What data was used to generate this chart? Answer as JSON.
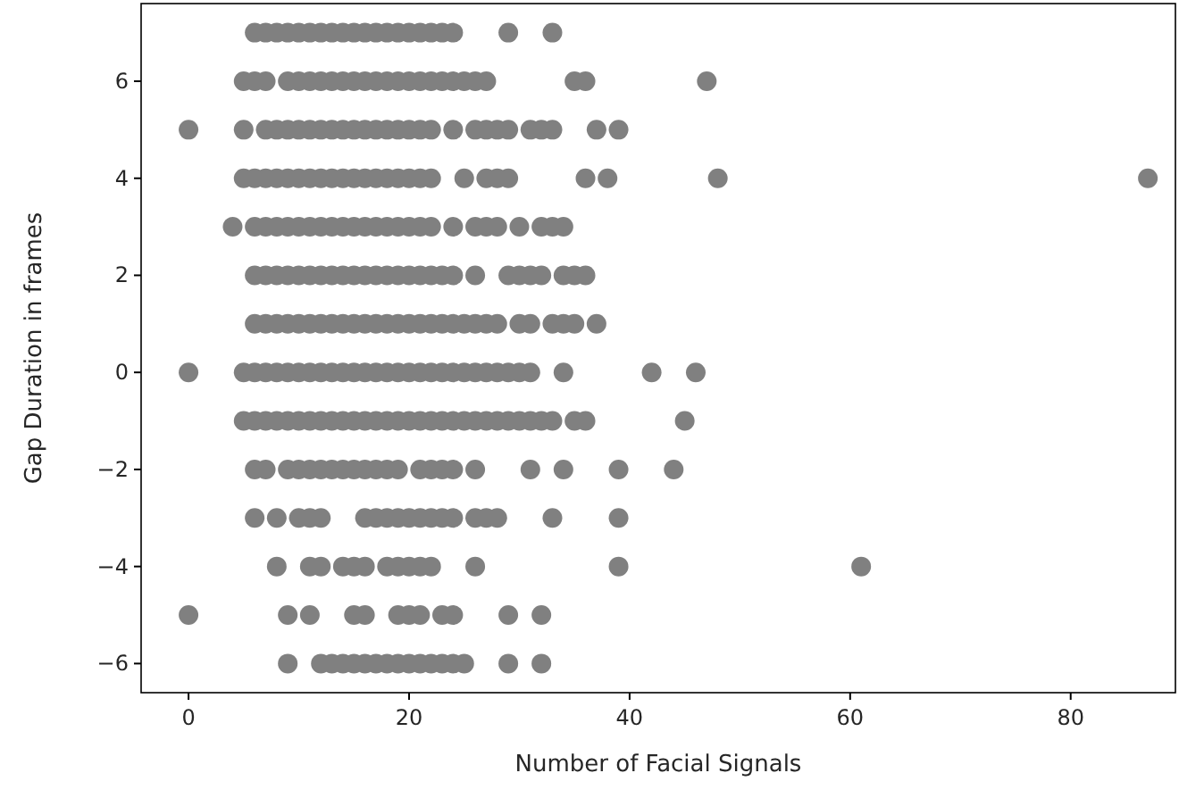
{
  "chart_data": {
    "type": "scatter",
    "xlabel": "Number of Facial Signals",
    "ylabel": "Gap Duration in frames",
    "xlim": [
      -4.3,
      89.5
    ],
    "ylim": [
      -6.6,
      7.6
    ],
    "xticks": [
      0,
      20,
      40,
      60,
      80
    ],
    "yticks": [
      -6,
      -4,
      -2,
      0,
      2,
      4,
      6
    ],
    "grid": false,
    "marker": "circle",
    "series": [
      {
        "color": "#808080",
        "x": [
          6,
          7,
          8,
          9,
          10,
          11,
          12,
          13,
          14,
          15,
          16,
          17,
          18,
          19,
          20,
          21,
          22,
          23,
          24,
          29,
          33,
          5,
          6,
          7,
          9,
          10,
          11,
          12,
          13,
          14,
          15,
          16,
          17,
          18,
          19,
          20,
          21,
          22,
          23,
          24,
          25,
          26,
          27,
          35,
          36,
          47,
          0,
          5,
          7,
          8,
          9,
          10,
          11,
          12,
          13,
          14,
          15,
          16,
          17,
          18,
          19,
          20,
          21,
          22,
          24,
          26,
          27,
          28,
          29,
          31,
          32,
          33,
          37,
          39,
          5,
          6,
          7,
          8,
          9,
          10,
          11,
          12,
          13,
          14,
          15,
          16,
          17,
          18,
          19,
          20,
          21,
          22,
          25,
          27,
          28,
          29,
          36,
          38,
          48,
          87,
          4,
          6,
          7,
          8,
          9,
          10,
          11,
          12,
          13,
          14,
          15,
          16,
          17,
          18,
          19,
          20,
          21,
          22,
          24,
          26,
          27,
          28,
          30,
          32,
          33,
          34,
          6,
          7,
          8,
          9,
          10,
          11,
          12,
          13,
          14,
          15,
          16,
          17,
          18,
          19,
          20,
          21,
          22,
          23,
          24,
          26,
          29,
          30,
          31,
          32,
          34,
          35,
          36,
          6,
          7,
          8,
          9,
          10,
          11,
          12,
          13,
          14,
          15,
          16,
          17,
          18,
          19,
          20,
          21,
          22,
          23,
          24,
          25,
          26,
          27,
          28,
          30,
          31,
          33,
          34,
          35,
          37,
          0,
          5,
          6,
          7,
          8,
          9,
          10,
          11,
          12,
          13,
          14,
          15,
          16,
          17,
          18,
          19,
          20,
          21,
          22,
          23,
          24,
          25,
          26,
          27,
          28,
          29,
          30,
          31,
          34,
          42,
          46,
          5,
          6,
          7,
          8,
          9,
          10,
          11,
          12,
          13,
          14,
          15,
          16,
          17,
          18,
          19,
          20,
          21,
          22,
          23,
          24,
          25,
          26,
          27,
          28,
          29,
          30,
          31,
          32,
          33,
          35,
          36,
          45,
          6,
          7,
          9,
          10,
          11,
          12,
          13,
          14,
          15,
          16,
          17,
          18,
          19,
          21,
          22,
          23,
          24,
          26,
          31,
          34,
          39,
          44,
          6,
          8,
          10,
          11,
          12,
          16,
          17,
          18,
          19,
          20,
          21,
          22,
          23,
          24,
          26,
          27,
          28,
          33,
          39,
          8,
          11,
          12,
          14,
          15,
          16,
          18,
          19,
          20,
          21,
          22,
          26,
          39,
          61,
          0,
          9,
          11,
          15,
          16,
          19,
          20,
          21,
          23,
          24,
          29,
          32,
          9,
          12,
          13,
          14,
          15,
          16,
          17,
          18,
          19,
          20,
          21,
          22,
          23,
          24,
          25,
          29,
          32
        ],
        "values": [
          7,
          7,
          7,
          7,
          7,
          7,
          7,
          7,
          7,
          7,
          7,
          7,
          7,
          7,
          7,
          7,
          7,
          7,
          7,
          7,
          7,
          6,
          6,
          6,
          6,
          6,
          6,
          6,
          6,
          6,
          6,
          6,
          6,
          6,
          6,
          6,
          6,
          6,
          6,
          6,
          6,
          6,
          6,
          6,
          6,
          6,
          5,
          5,
          5,
          5,
          5,
          5,
          5,
          5,
          5,
          5,
          5,
          5,
          5,
          5,
          5,
          5,
          5,
          5,
          5,
          5,
          5,
          5,
          5,
          5,
          5,
          5,
          5,
          5,
          4,
          4,
          4,
          4,
          4,
          4,
          4,
          4,
          4,
          4,
          4,
          4,
          4,
          4,
          4,
          4,
          4,
          4,
          4,
          4,
          4,
          4,
          4,
          4,
          4,
          4,
          3,
          3,
          3,
          3,
          3,
          3,
          3,
          3,
          3,
          3,
          3,
          3,
          3,
          3,
          3,
          3,
          3,
          3,
          3,
          3,
          3,
          3,
          3,
          3,
          3,
          3,
          2,
          2,
          2,
          2,
          2,
          2,
          2,
          2,
          2,
          2,
          2,
          2,
          2,
          2,
          2,
          2,
          2,
          2,
          2,
          2,
          2,
          2,
          2,
          2,
          2,
          2,
          2,
          1,
          1,
          1,
          1,
          1,
          1,
          1,
          1,
          1,
          1,
          1,
          1,
          1,
          1,
          1,
          1,
          1,
          1,
          1,
          1,
          1,
          1,
          1,
          1,
          1,
          1,
          1,
          1,
          1,
          0,
          0,
          0,
          0,
          0,
          0,
          0,
          0,
          0,
          0,
          0,
          0,
          0,
          0,
          0,
          0,
          0,
          0,
          0,
          0,
          0,
          0,
          0,
          0,
          0,
          0,
          0,
          0,
          0,
          0,
          0,
          -1,
          -1,
          -1,
          -1,
          -1,
          -1,
          -1,
          -1,
          -1,
          -1,
          -1,
          -1,
          -1,
          -1,
          -1,
          -1,
          -1,
          -1,
          -1,
          -1,
          -1,
          -1,
          -1,
          -1,
          -1,
          -1,
          -1,
          -1,
          -1,
          -1,
          -1,
          -1,
          -2,
          -2,
          -2,
          -2,
          -2,
          -2,
          -2,
          -2,
          -2,
          -2,
          -2,
          -2,
          -2,
          -2,
          -2,
          -2,
          -2,
          -2,
          -2,
          -2,
          -2,
          -2,
          -3,
          -3,
          -3,
          -3,
          -3,
          -3,
          -3,
          -3,
          -3,
          -3,
          -3,
          -3,
          -3,
          -3,
          -3,
          -3,
          -3,
          -3,
          -3,
          -4,
          -4,
          -4,
          -4,
          -4,
          -4,
          -4,
          -4,
          -4,
          -4,
          -4,
          -4,
          -4,
          -4,
          -5,
          -5,
          -5,
          -5,
          -5,
          -5,
          -5,
          -5,
          -5,
          -5,
          -5,
          -5,
          -6,
          -6,
          -6,
          -6,
          -6,
          -6,
          -6,
          -6,
          -6,
          -6,
          -6,
          -6,
          -6,
          -6,
          -6,
          -6,
          -6
        ]
      }
    ]
  }
}
